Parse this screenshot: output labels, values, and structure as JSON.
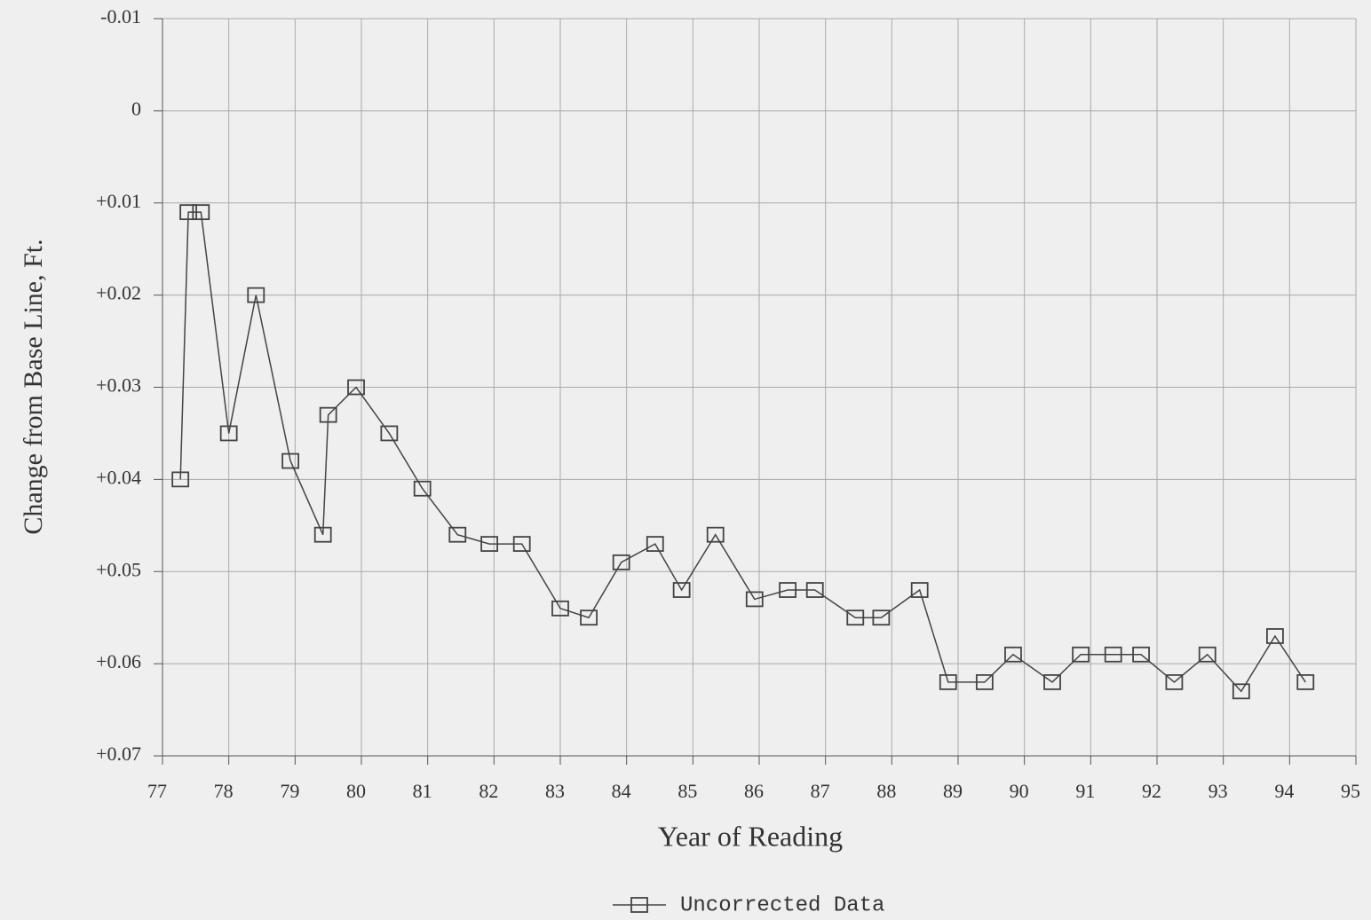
{
  "chart_data": {
    "type": "line",
    "xlabel": "Year of Reading",
    "ylabel": "Change from Base Line, Ft.",
    "x": [
      77.27,
      77.39,
      77.58,
      78.0,
      78.41,
      78.93,
      79.42,
      79.5,
      79.92,
      80.42,
      80.92,
      81.45,
      81.93,
      82.42,
      83.0,
      83.43,
      83.92,
      84.43,
      84.83,
      85.34,
      85.93,
      86.43,
      86.84,
      87.45,
      87.84,
      88.42,
      88.85,
      89.4,
      89.83,
      90.42,
      90.85,
      91.34,
      91.76,
      92.26,
      92.76,
      93.27,
      93.78,
      94.24
    ],
    "series": [
      {
        "name": "Uncorrected Data",
        "color": "#444444",
        "values": [
          0.04,
          0.011,
          0.011,
          0.035,
          0.02,
          0.038,
          0.046,
          0.033,
          0.03,
          0.035,
          0.041,
          0.046,
          0.047,
          0.047,
          0.054,
          0.055,
          0.049,
          0.047,
          0.052,
          0.046,
          0.053,
          0.052,
          0.052,
          0.055,
          0.055,
          0.052,
          0.062,
          0.062,
          0.059,
          0.062,
          0.059,
          0.059,
          0.059,
          0.062,
          0.059,
          0.063,
          0.057,
          0.062
        ]
      }
    ],
    "xlim": [
      77,
      95
    ],
    "xticks": [
      77,
      78,
      79,
      80,
      81,
      82,
      83,
      84,
      85,
      86,
      87,
      88,
      89,
      90,
      91,
      92,
      93,
      94,
      95
    ],
    "ylim": [
      -0.01,
      0.07
    ],
    "yaxis_inverted": true,
    "yticks": [
      -0.01,
      0,
      {
        "value": 0.01,
        "label": "+0.01"
      },
      {
        "value": 0.02,
        "label": "+0.02"
      },
      {
        "value": 0.03,
        "label": "+0.03"
      },
      {
        "value": 0.04,
        "label": "+0.04"
      },
      {
        "value": 0.05,
        "label": "+0.05"
      },
      {
        "value": 0.06,
        "label": "+0.06"
      },
      {
        "value": 0.07,
        "label": "+0.07"
      }
    ],
    "grid": true,
    "legend": "bottom"
  }
}
